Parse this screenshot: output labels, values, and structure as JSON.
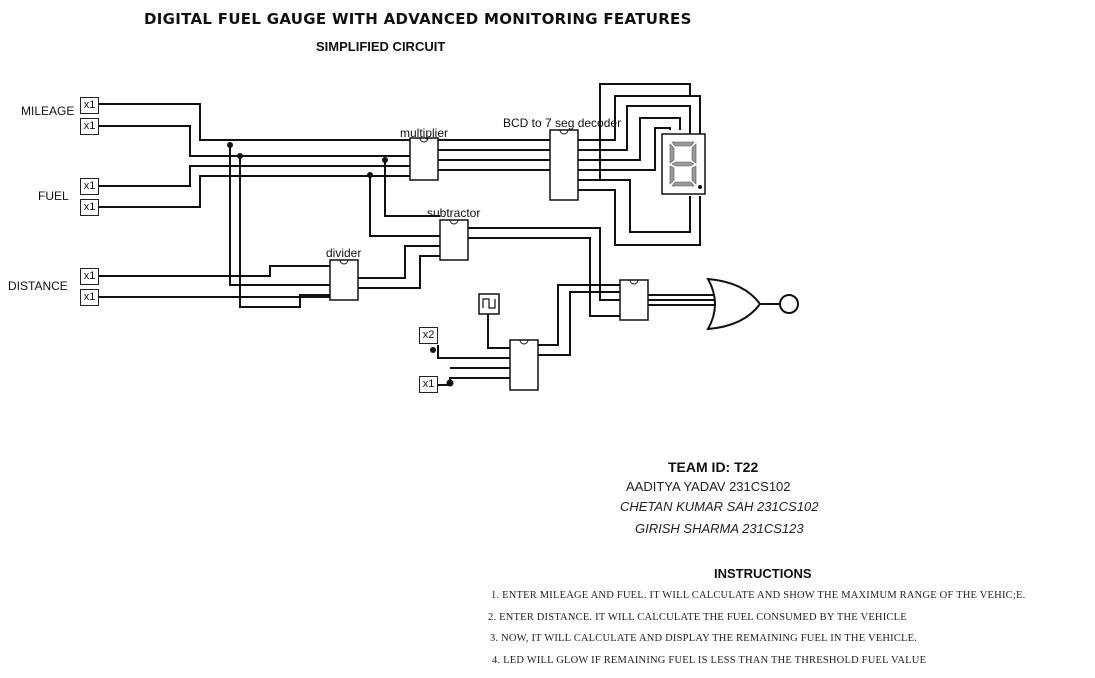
{
  "header": {
    "title": "DIGITAL FUEL GAUGE WITH ADVANCED MONITORING FEATURES",
    "subtitle": "SIMPLIFIED CIRCUIT"
  },
  "inputs": {
    "mileage_label": "MILEAGE",
    "fuel_label": "FUEL",
    "distance_label": "DISTANCE",
    "pin_x1": "x1",
    "pin_x2": "x2"
  },
  "components": {
    "multiplier": "multiplier",
    "decoder": "BCD to 7 seg decoder",
    "subtractor": "subtractor",
    "divider": "divider"
  },
  "team": {
    "id": "TEAM ID: T22",
    "members": [
      "AADITYA YADAV 231CS102",
      "CHETAN KUMAR SAH 231CS102",
      "GIRISH SHARMA 231CS123"
    ]
  },
  "instructions": {
    "title": "INSTRUCTIONS",
    "items": [
      "1. ENTER MILEAGE AND FUEL. IT WILL CALCULATE AND SHOW THE MAXIMUM RANGE OF THE VEHIC;E.",
      "2. ENTER DISTANCE. IT WILL CALCULATE THE FUEL CONSUMED BY THE VEHICLE",
      "3. NOW, IT WILL CALCULATE AND DISPLAY THE REMAINING FUEL IN THE VEHICLE.",
      "4. LED WILL GLOW IF REMAINING FUEL IS LESS THAN THE THRESHOLD FUEL VALUE"
    ]
  },
  "colors": {
    "wire": "#111111",
    "segment_off": "#9a9a9a",
    "background": "#ffffff"
  }
}
